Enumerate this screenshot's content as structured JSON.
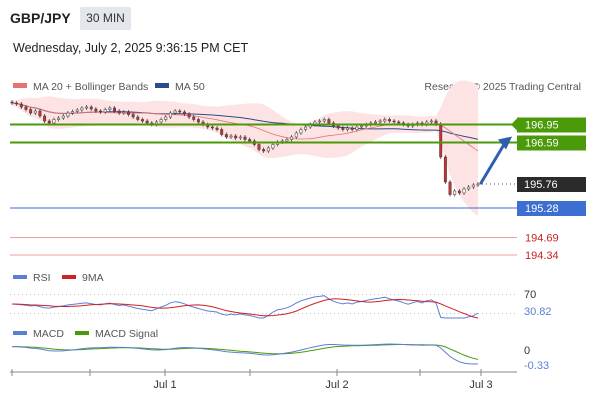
{
  "header": {
    "symbol": "GBP/JPY",
    "timeframe": "30 MIN",
    "datetime": "Wednesday, July 2, 2025 9:36:15 PM CET"
  },
  "colors": {
    "price_up": "#ffffff",
    "price_down": "#d32f2f",
    "ma20": "#e57373",
    "ma50": "#2b4b8a",
    "band_fill": "#fde3e3",
    "green_level": "#4a9a0a",
    "blue_level": "#3c6fd1",
    "red_level": "#e8a0a0",
    "rsi": "#5b7fd6",
    "rsi_ma": "#cc2222",
    "macd": "#5b7fd6",
    "macd_signal": "#4a9a0a",
    "arrow": "#2d5fb0",
    "current_price_bg": "#2b2b2b"
  },
  "chart_data": [
    {
      "type": "candlestick",
      "legend": [
        {
          "name": "MA 20 + Bollinger Bands",
          "color": "#e57373"
        },
        {
          "name": "MA 50",
          "color": "#2b4b8a"
        }
      ],
      "legend_placement": "top-left",
      "credit": "Research © 2025 Trading Central",
      "x_tick_labels": [
        "Jul 1",
        "Jul 2",
        "Jul 3"
      ],
      "ylim": [
        194.2,
        197.6
      ],
      "close": [
        197.38,
        197.36,
        197.3,
        197.25,
        197.18,
        197.22,
        197.12,
        197.02,
        196.98,
        197.05,
        197.08,
        197.12,
        197.18,
        197.21,
        197.24,
        197.28,
        197.3,
        197.26,
        197.22,
        197.2,
        197.25,
        197.28,
        197.22,
        197.18,
        197.2,
        197.15,
        197.1,
        197.05,
        197.02,
        196.98,
        196.95,
        197.0,
        197.05,
        197.1,
        197.18,
        197.22,
        197.2,
        197.16,
        197.1,
        197.05,
        197.0,
        196.95,
        196.9,
        196.88,
        196.85,
        196.75,
        196.7,
        196.72,
        196.68,
        196.7,
        196.65,
        196.62,
        196.55,
        196.45,
        196.42,
        196.48,
        196.55,
        196.6,
        196.62,
        196.65,
        196.7,
        196.78,
        196.85,
        196.9,
        196.95,
        197.0,
        197.02,
        197.05,
        196.98,
        196.92,
        196.88,
        196.85,
        196.88,
        196.85,
        196.9,
        196.92,
        196.95,
        196.98,
        197.0,
        197.02,
        197.05,
        197.02,
        197.0,
        196.98,
        196.95,
        196.92,
        196.95,
        196.98,
        196.95,
        197.0,
        197.02,
        196.96,
        196.3,
        195.8,
        195.55,
        195.62,
        195.58,
        195.66,
        195.7,
        195.74,
        195.76
      ],
      "levels": [
        {
          "value": 196.95,
          "label": "196.95",
          "color": "#4a9a0a"
        },
        {
          "value": 196.59,
          "label": "196.59",
          "color": "#4a9a0a"
        },
        {
          "value": 195.76,
          "label": "195.76",
          "color": "#2b2b2b",
          "current": true
        },
        {
          "value": 195.28,
          "label": "195.28",
          "color": "#3c6fd1"
        },
        {
          "value": 194.69,
          "label": "194.69",
          "color": "#cc2222"
        },
        {
          "value": 194.34,
          "label": "194.34",
          "color": "#cc2222"
        }
      ],
      "projection": "up-arrow toward 196.59"
    },
    {
      "type": "line",
      "legend": [
        {
          "name": "RSI",
          "color": "#5b7fd6"
        },
        {
          "name": "9MA",
          "color": "#cc2222"
        }
      ],
      "ylim": [
        20,
        80
      ],
      "reference_lines": [
        70,
        30
      ],
      "axis_labels": [
        "70",
        "30.82"
      ],
      "last_value": 30.82
    },
    {
      "type": "line",
      "legend": [
        {
          "name": "MACD",
          "color": "#5b7fd6"
        },
        {
          "name": "MACD Signal",
          "color": "#4a9a0a"
        }
      ],
      "axis_labels": [
        "0",
        "-0.33"
      ],
      "last_value": -0.33
    }
  ]
}
